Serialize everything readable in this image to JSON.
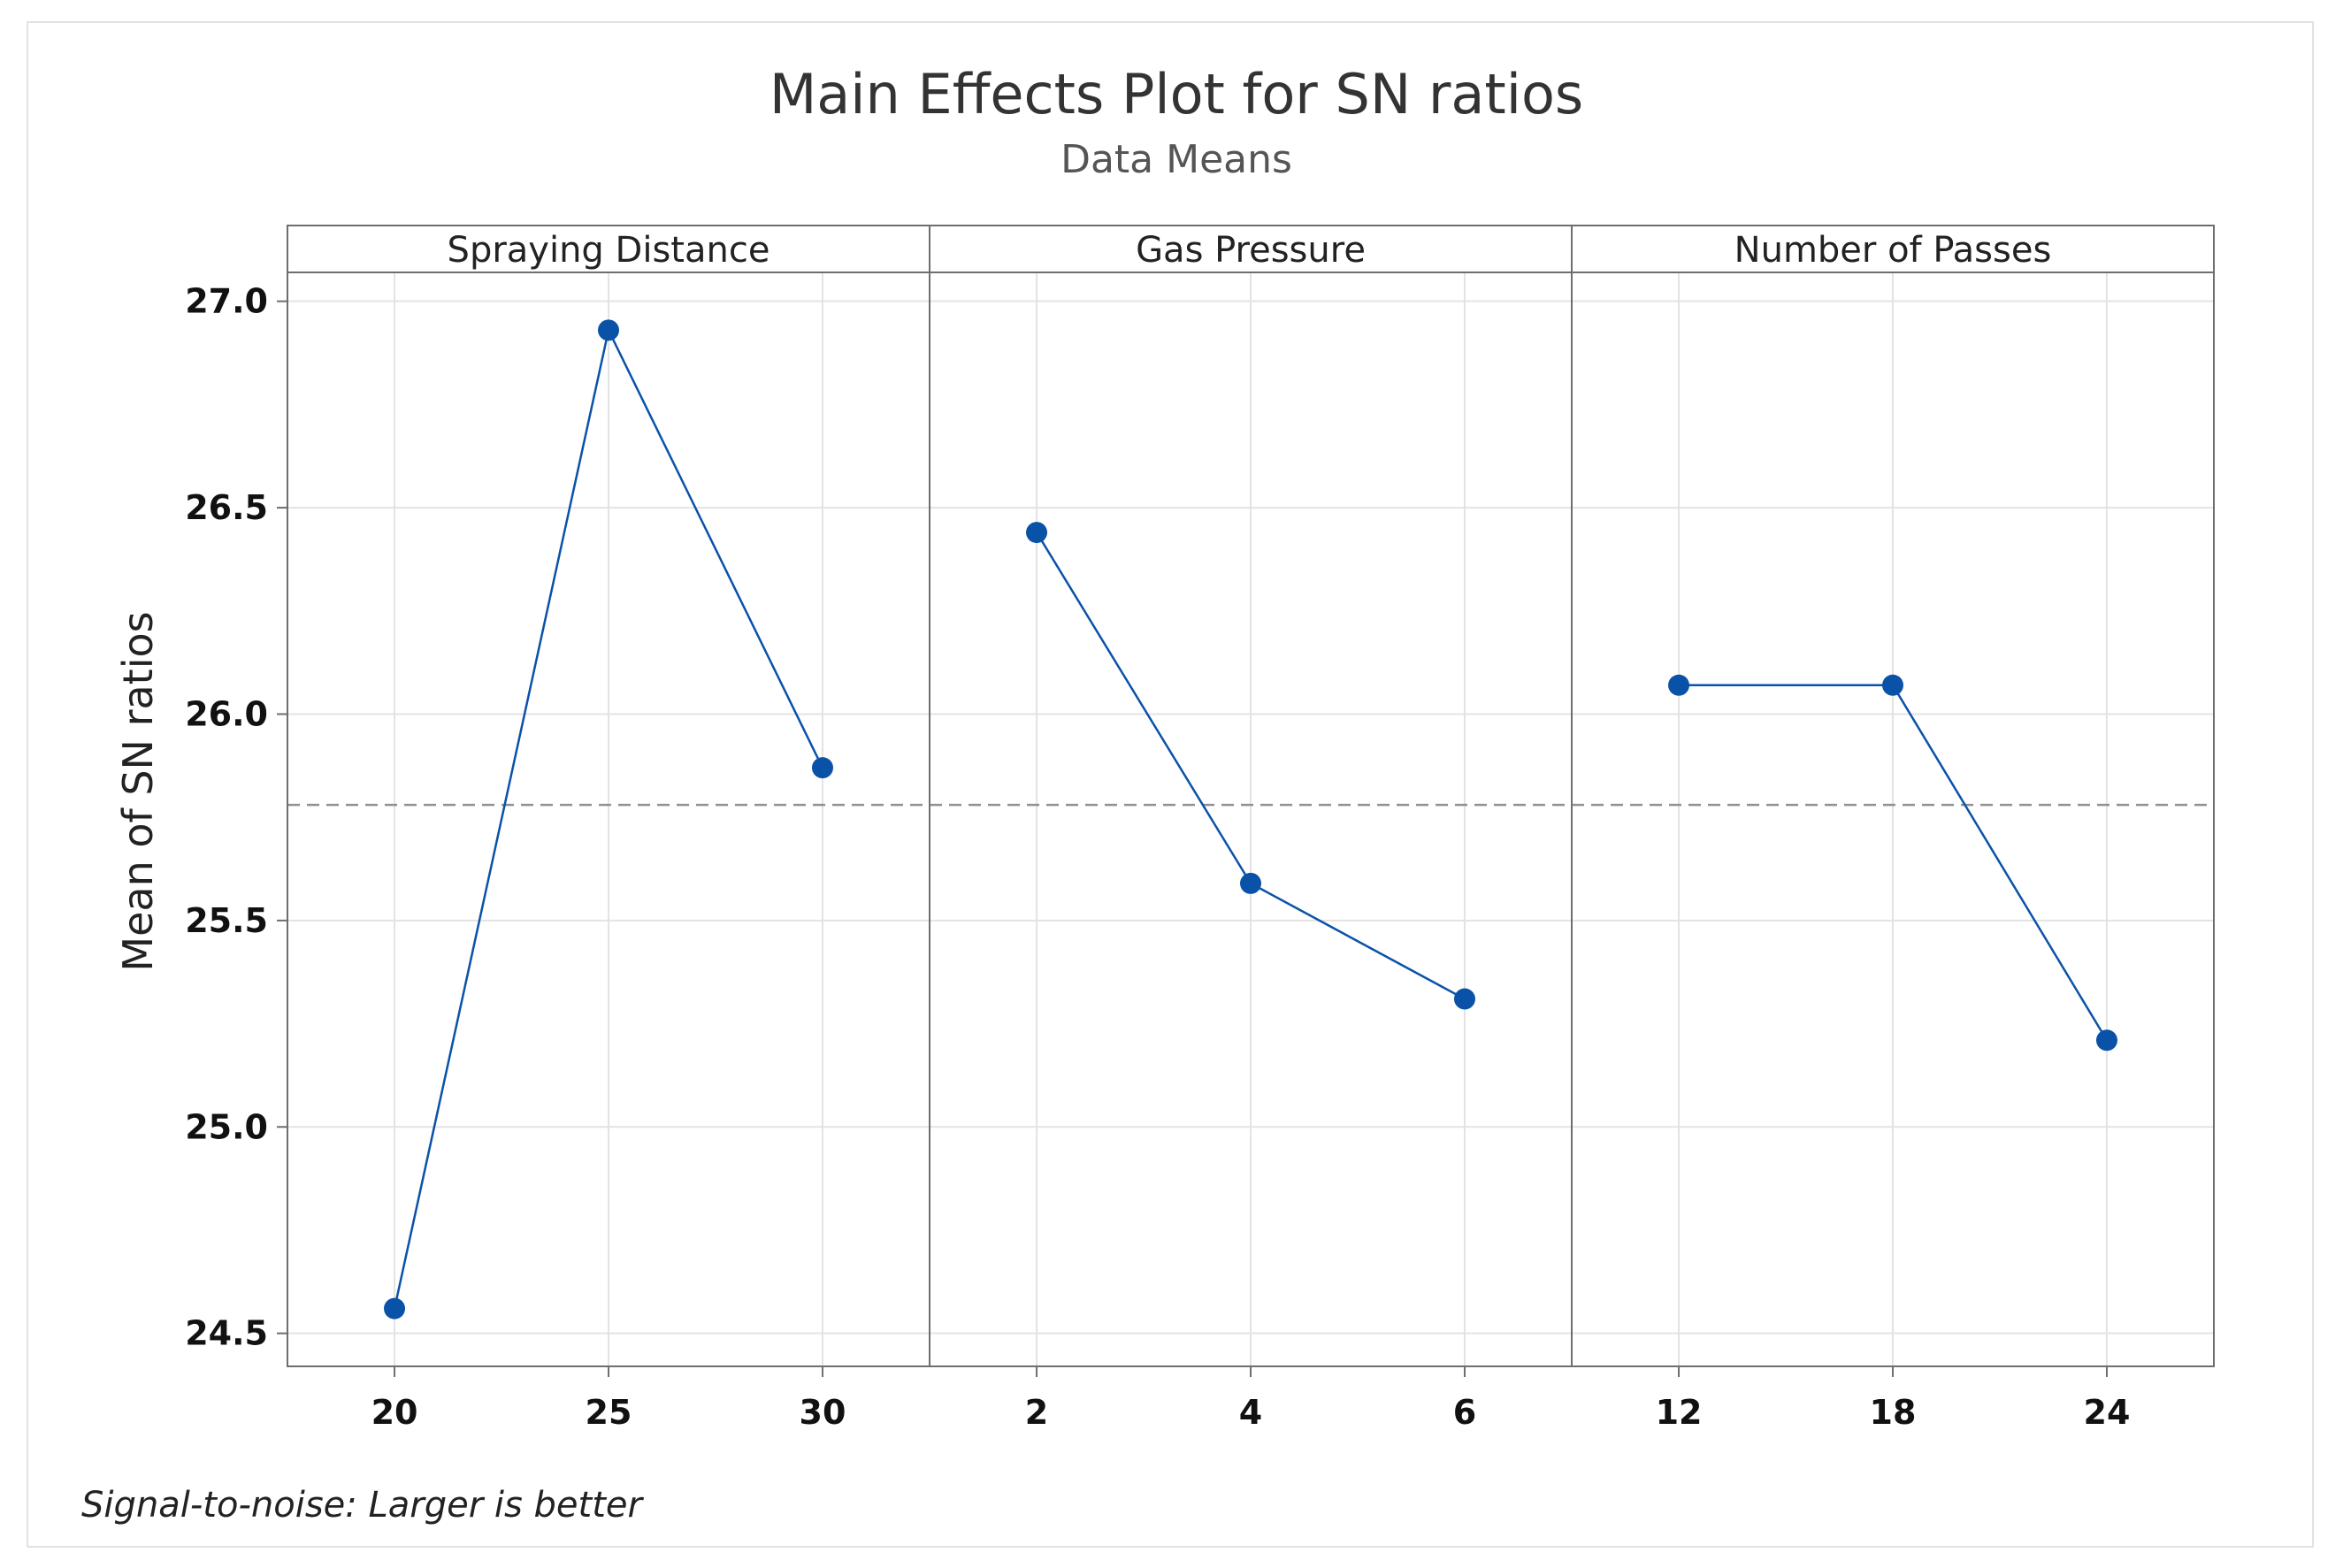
{
  "chart_data": {
    "type": "line",
    "title": "Main Effects Plot for SN ratios",
    "subtitle": "Data Means",
    "ylabel": "Mean of SN ratios",
    "ylim": [
      24.42,
      27.07
    ],
    "yticks": [
      "24.5",
      "25.0",
      "25.5",
      "26.0",
      "26.5",
      "27.0"
    ],
    "ytick_values": [
      24.5,
      25.0,
      25.5,
      26.0,
      26.5,
      27.0
    ],
    "reference_mean": 25.78,
    "footnote": "Signal-to-noise: Larger is better",
    "panels": [
      {
        "name": "Spraying Distance",
        "categories": [
          "20",
          "25",
          "30"
        ],
        "values": [
          24.56,
          26.93,
          25.87
        ]
      },
      {
        "name": "Gas Pressure",
        "categories": [
          "2",
          "4",
          "6"
        ],
        "values": [
          26.44,
          25.59,
          25.31
        ]
      },
      {
        "name": "Number of Passes",
        "categories": [
          "12",
          "18",
          "24"
        ],
        "values": [
          26.07,
          26.07,
          25.21
        ]
      }
    ],
    "colors": {
      "series": "#0a52a8",
      "grid": "#e3e3e3",
      "border": "#6e6e6e",
      "reference": "#909090"
    }
  }
}
